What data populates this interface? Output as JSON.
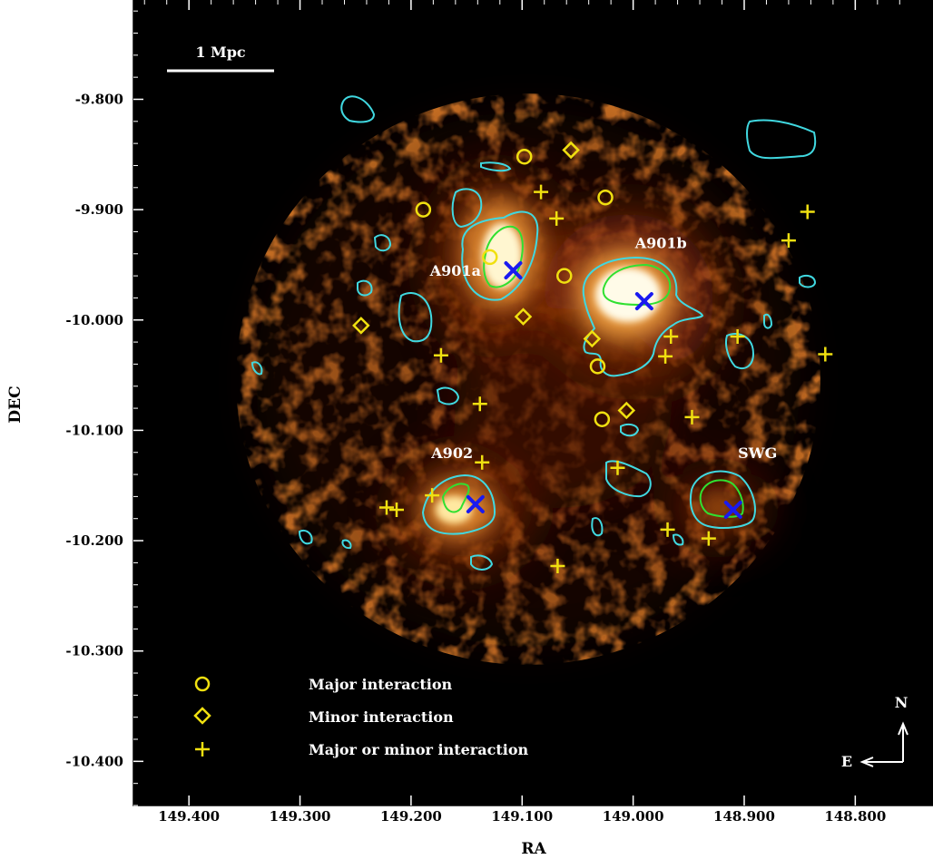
{
  "chart_data": {
    "type": "scatter",
    "xlabel": "RA",
    "ylabel": "DEC",
    "xlim": [
      149.45,
      148.73
    ],
    "ylim": [
      -10.44,
      -9.71
    ],
    "x_ticks": [
      149.4,
      149.3,
      149.2,
      149.1,
      149.0,
      148.9,
      148.8
    ],
    "x_tick_labels": [
      "149.400",
      "149.300",
      "149.200",
      "149.100",
      "149.000",
      "148.900",
      "148.800"
    ],
    "y_ticks": [
      -9.8,
      -9.9,
      -10.0,
      -10.1,
      -10.2,
      -10.3,
      -10.4
    ],
    "y_tick_labels": [
      "-9.800",
      "-9.900",
      "-10.000",
      "-10.100",
      "-10.200",
      "-10.300",
      "-10.400"
    ],
    "scale_bar": {
      "label": "1 Mpc"
    },
    "compass": {
      "north": "N",
      "east": "E"
    },
    "cluster_labels": [
      {
        "text": "A901a",
        "ra": 149.16,
        "dec": -9.96
      },
      {
        "text": "A901b",
        "ra": 148.975,
        "dec": -9.935
      },
      {
        "text": "A902",
        "ra": 149.163,
        "dec": -10.125
      },
      {
        "text": "SWG",
        "ra": 148.888,
        "dec": -10.125
      }
    ],
    "cluster_centers": [
      {
        "ra": 149.108,
        "dec": -9.955
      },
      {
        "ra": 148.99,
        "dec": -9.983
      },
      {
        "ra": 149.142,
        "dec": -10.167
      },
      {
        "ra": 148.91,
        "dec": -10.172
      }
    ],
    "legend": [
      {
        "label": "Major interaction",
        "marker": "circle"
      },
      {
        "label": "Minor interaction",
        "marker": "diamond"
      },
      {
        "label": "Major or minor interaction",
        "marker": "plus"
      }
    ],
    "series": [
      {
        "marker": "circle",
        "color": "#f0e010",
        "points": [
          [
            149.098,
            -9.852
          ],
          [
            149.189,
            -9.9
          ],
          [
            149.025,
            -9.889
          ],
          [
            149.129,
            -9.943
          ],
          [
            149.062,
            -9.96
          ],
          [
            149.032,
            -10.042
          ],
          [
            149.028,
            -10.09
          ]
        ]
      },
      {
        "marker": "diamond",
        "color": "#f0e010",
        "points": [
          [
            149.056,
            -9.846
          ],
          [
            149.245,
            -10.005
          ],
          [
            149.099,
            -9.997
          ],
          [
            149.037,
            -10.017
          ],
          [
            149.006,
            -10.082
          ]
        ]
      },
      {
        "marker": "plus",
        "color": "#f0e010",
        "points": [
          [
            149.083,
            -9.884
          ],
          [
            149.069,
            -9.908
          ],
          [
            148.843,
            -9.902
          ],
          [
            148.86,
            -9.928
          ],
          [
            149.173,
            -10.032
          ],
          [
            148.966,
            -10.015
          ],
          [
            148.971,
            -10.033
          ],
          [
            148.906,
            -10.015
          ],
          [
            148.827,
            -10.031
          ],
          [
            149.138,
            -10.076
          ],
          [
            148.947,
            -10.088
          ],
          [
            149.136,
            -10.129
          ],
          [
            149.014,
            -10.134
          ],
          [
            149.181,
            -10.159
          ],
          [
            149.222,
            -10.17
          ],
          [
            149.213,
            -10.172
          ],
          [
            148.969,
            -10.19
          ],
          [
            148.932,
            -10.198
          ],
          [
            149.068,
            -10.223
          ]
        ]
      }
    ],
    "colors": {
      "background": "#000000",
      "contour_outer": "#40d8e0",
      "contour_inner": "#30e030",
      "marker": "#f0e010",
      "center_cross": "#1a1af0"
    }
  }
}
